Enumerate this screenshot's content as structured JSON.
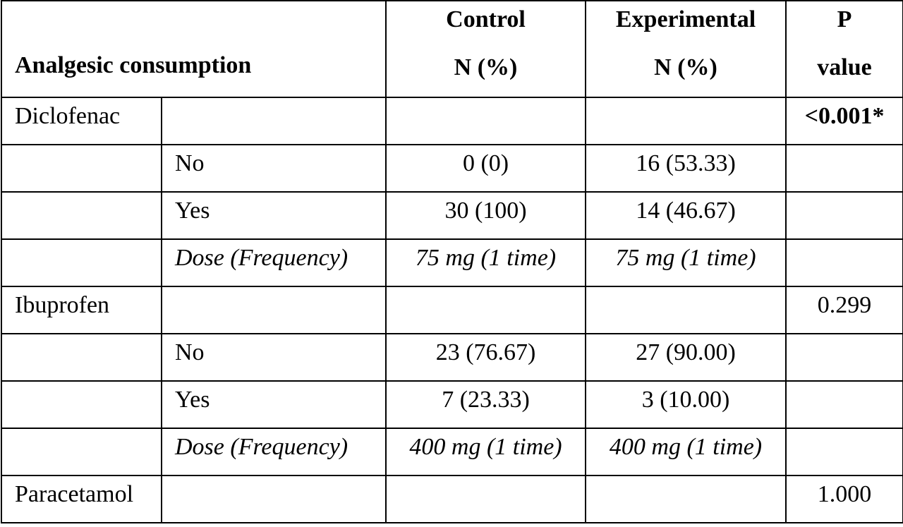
{
  "header": {
    "row_label": "Analgesic consumption",
    "control_line1": "Control",
    "control_line2": "N (%)",
    "experimental_line1": "Experimental",
    "experimental_line2": "N (%)",
    "p_line1": "P",
    "p_line2": "value"
  },
  "groups": [
    {
      "name": "Diclofenac",
      "p_value": "<0.001*",
      "rows": [
        {
          "label": "No",
          "control": "0 (0)",
          "experimental": "16 (53.33)"
        },
        {
          "label": "Yes",
          "control": "30 (100)",
          "experimental": "14 (46.67)"
        },
        {
          "label": "Dose (Frequency)",
          "control": "75 mg (1 time)",
          "experimental": "75 mg (1 time)"
        }
      ]
    },
    {
      "name": "Ibuprofen",
      "p_value": "0.299",
      "rows": [
        {
          "label": "No",
          "control": "23 (76.67)",
          "experimental": "27 (90.00)"
        },
        {
          "label": "Yes",
          "control": "7 (23.33)",
          "experimental": "3 (10.00)"
        },
        {
          "label": "Dose (Frequency)",
          "control": "400 mg (1 time)",
          "experimental": "400 mg (1 time)"
        }
      ]
    },
    {
      "name": "Paracetamol",
      "p_value": "1.000",
      "rows": []
    }
  ]
}
